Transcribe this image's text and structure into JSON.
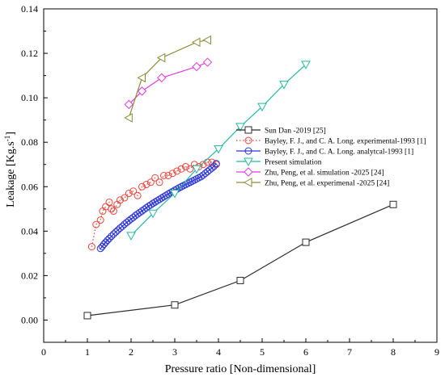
{
  "chart_data": {
    "type": "line",
    "title": "",
    "xlabel": "Pressure ratio [Non-dimensional]",
    "ylabel": "Leakage [Kg.s",
    "ylabel_sup": "-1",
    "ylabel_end": "]",
    "xlim": [
      0,
      9
    ],
    "ylim": [
      -0.01,
      0.14
    ],
    "x_ticks": [
      "0",
      "1",
      "2",
      "3",
      "4",
      "5",
      "6",
      "7",
      "8",
      "9"
    ],
    "y_ticks": [
      "0.00",
      "0.02",
      "0.04",
      "0.06",
      "0.08",
      "0.10",
      "0.12",
      "0.14"
    ],
    "grid": false,
    "legend_position": "center-right",
    "series": [
      {
        "name": "Sun Dan -2019 [25]",
        "color": "#2b2b2b",
        "marker": "square",
        "line": "solid",
        "x": [
          1.0,
          3.0,
          4.5,
          6.0,
          8.0
        ],
        "y": [
          0.002,
          0.0068,
          0.0178,
          0.035,
          0.052
        ]
      },
      {
        "name": "Bayley, F. J., and C. A. Long. experimental-1993 [1]",
        "color": "#e8463c",
        "marker": "circle",
        "line": "dotted",
        "x": [
          1.1,
          1.2,
          1.3,
          1.35,
          1.42,
          1.5,
          1.55,
          1.6,
          1.68,
          1.75,
          1.85,
          1.95,
          2.05,
          2.15,
          2.25,
          2.35,
          2.45,
          2.55,
          2.65,
          2.75,
          2.85,
          2.95,
          3.05,
          3.15,
          3.25,
          3.35,
          3.45,
          3.55,
          3.65,
          3.75,
          3.85,
          3.95
        ],
        "y": [
          0.033,
          0.043,
          0.045,
          0.049,
          0.051,
          0.053,
          0.05,
          0.049,
          0.052,
          0.054,
          0.055,
          0.057,
          0.058,
          0.056,
          0.06,
          0.061,
          0.062,
          0.064,
          0.062,
          0.065,
          0.065,
          0.066,
          0.067,
          0.068,
          0.069,
          0.068,
          0.07,
          0.069,
          0.07,
          0.071,
          0.071,
          0.07
        ]
      },
      {
        "name": "Bayley, F. J., and C. A. Long. analytcal-1993 [1]",
        "color": "#2b35d6",
        "marker": "circle",
        "line": "solid",
        "x": [
          1.3,
          1.34,
          1.38,
          1.42,
          1.46,
          1.5,
          1.55,
          1.6,
          1.65,
          1.7,
          1.75,
          1.8,
          1.85,
          1.9,
          1.95,
          2.0,
          2.05,
          2.1,
          2.15,
          2.2,
          2.25,
          2.3,
          2.35,
          2.4,
          2.45,
          2.5,
          2.55,
          2.6,
          2.65,
          2.7,
          2.75,
          2.8,
          2.85,
          2.9,
          2.95,
          3.0,
          3.05,
          3.1,
          3.15,
          3.2,
          3.25,
          3.3,
          3.35,
          3.4,
          3.45,
          3.5,
          3.55,
          3.6,
          3.65,
          3.7,
          3.75,
          3.8,
          3.85,
          3.9,
          3.95
        ],
        "y": [
          0.0322,
          0.0331,
          0.0341,
          0.035,
          0.0359,
          0.0367,
          0.0377,
          0.0387,
          0.0396,
          0.0405,
          0.0414,
          0.0422,
          0.0431,
          0.0439,
          0.0447,
          0.0455,
          0.0462,
          0.047,
          0.0477,
          0.0484,
          0.0491,
          0.0498,
          0.0505,
          0.0512,
          0.0518,
          0.0525,
          0.0531,
          0.0537,
          0.0543,
          0.0549,
          0.0555,
          0.0561,
          0.0567,
          0.0573,
          0.0578,
          0.0584,
          0.0589,
          0.0595,
          0.06,
          0.0605,
          0.061,
          0.0615,
          0.062,
          0.0625,
          0.063,
          0.0635,
          0.064,
          0.0645,
          0.0652,
          0.066,
          0.0668,
          0.0676,
          0.0684,
          0.0692,
          0.0704
        ]
      },
      {
        "name": "Present simulation",
        "color": "#25b7a0",
        "marker": "triangle-down",
        "line": "solid",
        "x": [
          2.0,
          2.5,
          3.0,
          3.5,
          4.0,
          4.5,
          5.0,
          5.5,
          6.0
        ],
        "y": [
          0.038,
          0.048,
          0.057,
          0.068,
          0.077,
          0.087,
          0.096,
          0.106,
          0.115
        ]
      },
      {
        "name": "Zhu, Peng, et al. simulation -2025 [24]",
        "color": "#e13be0",
        "marker": "diamond",
        "line": "solid",
        "x": [
          1.95,
          2.25,
          2.7,
          3.5,
          3.75
        ],
        "y": [
          0.097,
          0.103,
          0.109,
          0.114,
          0.116
        ]
      },
      {
        "name": "Zhu, Peng, et al. experimenal -2025 [24]",
        "color": "#8c8a3a",
        "marker": "triangle-left",
        "line": "solid",
        "x": [
          1.95,
          2.25,
          2.7,
          3.5,
          3.75
        ],
        "y": [
          0.091,
          0.109,
          0.118,
          0.125,
          0.126
        ]
      }
    ]
  }
}
